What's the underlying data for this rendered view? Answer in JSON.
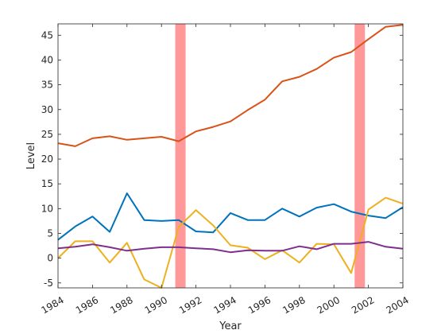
{
  "chart_data": {
    "type": "line",
    "title": "",
    "xlabel": "Year",
    "ylabel": "Level",
    "xlim": [
      1984,
      2004
    ],
    "ylim": [
      -6,
      47.3
    ],
    "grid": false,
    "legend": "none",
    "x": [
      1984,
      1985,
      1986,
      1987,
      1988,
      1989,
      1990,
      1991,
      1992,
      1993,
      1994,
      1995,
      1996,
      1997,
      1998,
      1999,
      2000,
      2001,
      2002,
      2003,
      2004
    ],
    "xticks": [
      "1984",
      "1986",
      "1988",
      "1990",
      "1992",
      "1994",
      "1996",
      "1998",
      "2000",
      "2002",
      "2004"
    ],
    "yticks": [
      "-5",
      "0",
      "5",
      "10",
      "15",
      "20",
      "25",
      "30",
      "35",
      "40",
      "45"
    ],
    "shaded_regions": [
      {
        "x0": 1990.8,
        "x1": 1991.4,
        "color": "#ff9999"
      },
      {
        "x0": 2001.2,
        "x1": 2001.8,
        "color": "#ff9999"
      }
    ],
    "series": [
      {
        "color": "#d95319",
        "values": [
          23.2,
          22.6,
          24.2,
          24.6,
          23.9,
          24.2,
          24.5,
          23.6,
          25.6,
          26.5,
          27.6,
          29.9,
          32.0,
          35.7,
          36.6,
          38.2,
          40.5,
          41.6,
          44.2,
          46.7,
          47.1
        ]
      },
      {
        "color": "#0072bd",
        "values": [
          3.7,
          6.4,
          8.4,
          5.3,
          13.1,
          7.7,
          7.5,
          7.7,
          5.4,
          5.2,
          9.1,
          7.7,
          7.7,
          10.0,
          8.4,
          10.2,
          10.9,
          9.4,
          8.6,
          8.1,
          10.3
        ]
      },
      {
        "color": "#edb120",
        "values": [
          0.0,
          3.4,
          3.4,
          -0.9,
          3.1,
          -4.3,
          -6.0,
          6.3,
          9.7,
          6.6,
          2.6,
          2.1,
          -0.2,
          1.6,
          -0.9,
          2.9,
          2.8,
          -3.0,
          9.8,
          12.2,
          11.0
        ]
      },
      {
        "color": "#7e2f8e",
        "values": [
          2.0,
          2.3,
          2.8,
          2.2,
          1.5,
          1.9,
          2.2,
          2.2,
          2.0,
          1.8,
          1.2,
          1.6,
          1.5,
          1.5,
          2.4,
          1.8,
          2.9,
          2.9,
          3.3,
          2.3,
          1.9
        ]
      }
    ]
  }
}
